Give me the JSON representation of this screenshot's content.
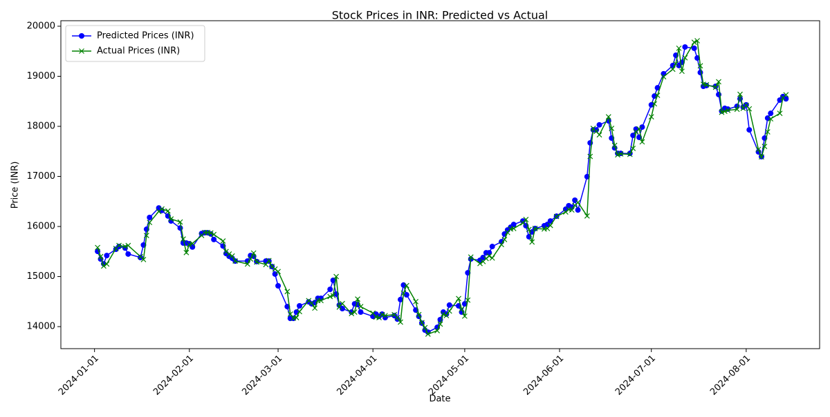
{
  "chart_data": {
    "type": "line",
    "title": "Stock Prices in INR: Predicted vs Actual",
    "x_label": "Date",
    "y_label": "Price (INR)",
    "x": [
      "2024-01-02",
      "2024-01-03",
      "2024-01-04",
      "2024-01-05",
      "2024-01-08",
      "2024-01-09",
      "2024-01-11",
      "2024-01-12",
      "2024-01-16",
      "2024-01-17",
      "2024-01-18",
      "2024-01-19",
      "2024-01-22",
      "2024-01-23",
      "2024-01-25",
      "2024-01-26",
      "2024-01-29",
      "2024-01-30",
      "2024-01-31",
      "2024-02-01",
      "2024-02-02",
      "2024-02-05",
      "2024-02-06",
      "2024-02-07",
      "2024-02-08",
      "2024-02-09",
      "2024-02-12",
      "2024-02-13",
      "2024-02-14",
      "2024-02-15",
      "2024-02-16",
      "2024-02-20",
      "2024-02-21",
      "2024-02-22",
      "2024-02-23",
      "2024-02-26",
      "2024-02-27",
      "2024-02-28",
      "2024-02-29",
      "2024-03-01",
      "2024-03-04",
      "2024-03-05",
      "2024-03-06",
      "2024-03-07",
      "2024-03-08",
      "2024-03-11",
      "2024-03-12",
      "2024-03-13",
      "2024-03-14",
      "2024-03-15",
      "2024-03-18",
      "2024-03-19",
      "2024-03-20",
      "2024-03-21",
      "2024-03-22",
      "2024-03-25",
      "2024-03-26",
      "2024-03-27",
      "2024-03-28",
      "2024-04-01",
      "2024-04-02",
      "2024-04-03",
      "2024-04-04",
      "2024-04-05",
      "2024-04-08",
      "2024-04-09",
      "2024-04-10",
      "2024-04-11",
      "2024-04-12",
      "2024-04-15",
      "2024-04-16",
      "2024-04-17",
      "2024-04-18",
      "2024-04-19",
      "2024-04-22",
      "2024-04-23",
      "2024-04-24",
      "2024-04-25",
      "2024-04-26",
      "2024-04-29",
      "2024-04-30",
      "2024-05-01",
      "2024-05-02",
      "2024-05-03",
      "2024-05-06",
      "2024-05-07",
      "2024-05-08",
      "2024-05-09",
      "2024-05-10",
      "2024-05-13",
      "2024-05-14",
      "2024-05-15",
      "2024-05-16",
      "2024-05-17",
      "2024-05-20",
      "2024-05-21",
      "2024-05-22",
      "2024-05-23",
      "2024-05-24",
      "2024-05-27",
      "2024-05-28",
      "2024-05-29",
      "2024-05-31",
      "2024-06-03",
      "2024-06-04",
      "2024-06-05",
      "2024-06-06",
      "2024-06-07",
      "2024-06-10",
      "2024-06-11",
      "2024-06-12",
      "2024-06-13",
      "2024-06-14",
      "2024-06-17",
      "2024-06-18",
      "2024-06-19",
      "2024-06-20",
      "2024-06-21",
      "2024-06-24",
      "2024-06-25",
      "2024-06-26",
      "2024-06-27",
      "2024-06-28",
      "2024-07-01",
      "2024-07-02",
      "2024-07-03",
      "2024-07-05",
      "2024-07-08",
      "2024-07-09",
      "2024-07-10",
      "2024-07-11",
      "2024-07-12",
      "2024-07-15",
      "2024-07-16",
      "2024-07-17",
      "2024-07-18",
      "2024-07-19",
      "2024-07-22",
      "2024-07-23",
      "2024-07-24",
      "2024-07-25",
      "2024-07-26",
      "2024-07-29",
      "2024-07-30",
      "2024-07-31",
      "2024-08-01",
      "2024-08-02",
      "2024-08-05",
      "2024-08-06",
      "2024-08-07",
      "2024-08-08",
      "2024-08-09",
      "2024-08-12",
      "2024-08-13",
      "2024-08-14"
    ],
    "series": [
      {
        "name": "Predicted Prices (INR)",
        "color": "#0000ff",
        "marker": "o",
        "values": [
          15503,
          15350,
          15255,
          15420,
          15545,
          15600,
          15570,
          15450,
          15380,
          15630,
          15945,
          16180,
          16370,
          16320,
          16210,
          16110,
          15970,
          15670,
          15670,
          15655,
          15590,
          15860,
          15875,
          15875,
          15850,
          15740,
          15610,
          15460,
          15405,
          15365,
          15310,
          15310,
          15420,
          15405,
          15300,
          15310,
          15310,
          15200,
          15050,
          14815,
          14400,
          14165,
          14165,
          14290,
          14415,
          14495,
          14455,
          14480,
          14565,
          14565,
          14745,
          14925,
          14650,
          14430,
          14360,
          14290,
          14455,
          14440,
          14290,
          14205,
          14250,
          14205,
          14250,
          14180,
          14220,
          14150,
          14540,
          14830,
          14635,
          14330,
          14205,
          14070,
          13930,
          13890,
          13985,
          14140,
          14290,
          14250,
          14430,
          14415,
          14290,
          14455,
          15075,
          15350,
          15325,
          15380,
          15475,
          15475,
          15600,
          15695,
          15850,
          15930,
          15985,
          16040,
          16110,
          16015,
          15795,
          15890,
          15960,
          16015,
          16040,
          16110,
          16205,
          16345,
          16415,
          16385,
          16525,
          16330,
          16995,
          17670,
          17930,
          17930,
          18030,
          18110,
          17765,
          17570,
          17460,
          17460,
          17460,
          17820,
          17945,
          17780,
          17985,
          18430,
          18605,
          18770,
          19050,
          19215,
          19420,
          19215,
          19280,
          19585,
          19560,
          19365,
          19075,
          18800,
          18815,
          18800,
          18635,
          18305,
          18360,
          18345,
          18400,
          18550,
          18385,
          18430,
          17930,
          17490,
          17395,
          17765,
          18165,
          18260,
          18525,
          18595,
          18550
        ]
      },
      {
        "name": "Actual Prices (INR)",
        "color": "#008000",
        "marker": "x",
        "values": [
          15580,
          15400,
          15210,
          15250,
          15560,
          15620,
          15600,
          15620,
          15400,
          15340,
          15820,
          16080,
          16300,
          16350,
          16310,
          16150,
          16090,
          15750,
          15480,
          15640,
          15660,
          15820,
          15880,
          15880,
          15870,
          15840,
          15710,
          15500,
          15450,
          15410,
          15310,
          15250,
          15350,
          15470,
          15290,
          15240,
          15320,
          15200,
          15150,
          15100,
          14700,
          14250,
          14170,
          14180,
          14300,
          14520,
          14470,
          14370,
          14520,
          14520,
          14600,
          14620,
          15000,
          14390,
          14460,
          14260,
          14290,
          14550,
          14400,
          14270,
          14190,
          14180,
          14240,
          14220,
          14240,
          14180,
          14090,
          14670,
          14820,
          14500,
          14240,
          14080,
          13980,
          13850,
          13920,
          14050,
          14250,
          14220,
          14310,
          14560,
          14350,
          14210,
          14530,
          15390,
          15260,
          15300,
          15360,
          15410,
          15370,
          15640,
          15740,
          15880,
          15950,
          15960,
          16070,
          16140,
          15940,
          15690,
          15960,
          15950,
          15960,
          16020,
          16200,
          16290,
          16340,
          16330,
          16420,
          16480,
          16210,
          17400,
          17960,
          17900,
          17830,
          18190,
          17960,
          17620,
          17430,
          17450,
          17440,
          17560,
          17890,
          17950,
          17690,
          18190,
          18450,
          18620,
          18990,
          19140,
          19250,
          19560,
          19100,
          19370,
          19680,
          19710,
          19210,
          18840,
          18830,
          18780,
          18890,
          18280,
          18300,
          18320,
          18340,
          18640,
          18360,
          18420,
          18350,
          17540,
          17390,
          17600,
          17890,
          18150,
          18260,
          18570,
          18630
        ]
      }
    ],
    "xlim": [
      "2023-12-21",
      "2024-08-25"
    ],
    "xticks": [
      "2024-01-01",
      "2024-02-01",
      "2024-03-01",
      "2024-04-01",
      "2024-05-01",
      "2024-06-01",
      "2024-07-01",
      "2024-08-01"
    ],
    "ylim": [
      13560,
      20110
    ],
    "yticks": [
      14000,
      15000,
      16000,
      17000,
      18000,
      19000,
      20000
    ],
    "grid": false,
    "legend": "upper left"
  }
}
